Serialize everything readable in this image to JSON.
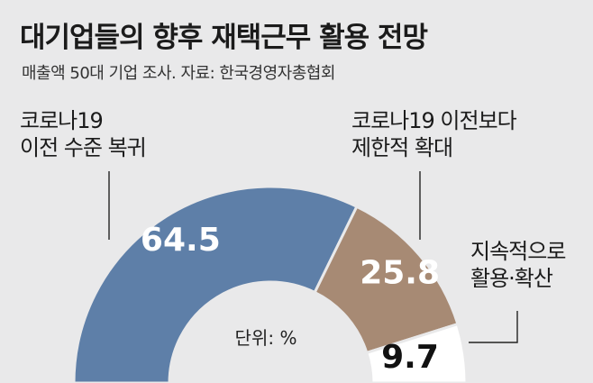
{
  "title": "대기업들의 향후 재택근무 활용 전망",
  "subtitle": "매출액 50대 기업 조사.  자료: 한국경영자총협회",
  "chart_data": {
    "type": "pie",
    "variant": "semicircle-donut",
    "unit_label": "단위: %",
    "slices": [
      {
        "label_lines": [
          "코로나19",
          "이전 수준 복귀"
        ],
        "value": 64.5,
        "color": "#5e7fa8",
        "value_color": "#ffffff"
      },
      {
        "label_lines": [
          "코로나19 이전보다",
          "제한적 확대"
        ],
        "value": 25.8,
        "color": "#a78a74",
        "value_color": "#ffffff"
      },
      {
        "label_lines": [
          "지속적으로",
          "활용·확산"
        ],
        "value": 9.7,
        "color": "#ffffff",
        "value_color": "#111111"
      }
    ]
  }
}
